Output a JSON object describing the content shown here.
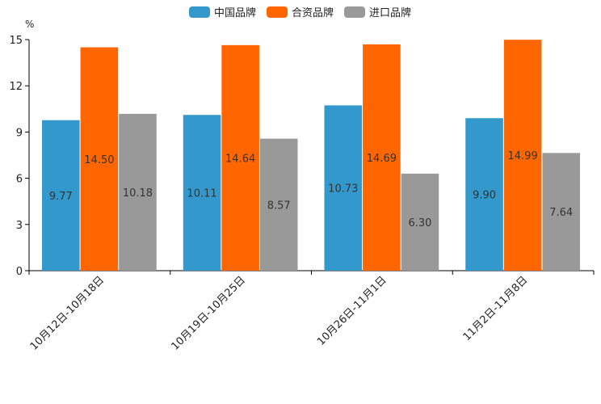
{
  "chart_data": {
    "type": "bar",
    "title": "",
    "xlabel": "",
    "ylabel": "%",
    "ylim": [
      0,
      15
    ],
    "yticks": [
      0,
      3,
      6,
      9,
      12,
      15
    ],
    "grid": false,
    "legend_position": "top-center",
    "categories": [
      "10月12日-10月18日",
      "10月19日-10月25日",
      "10月26日-11月1日",
      "11月2日-11月8日"
    ],
    "series": [
      {
        "name": "中国品牌",
        "color": "#3399cc",
        "values": [
          9.77,
          10.11,
          10.73,
          9.9
        ],
        "labels": [
          "9.77",
          "10.11",
          "10.73",
          "9.90"
        ]
      },
      {
        "name": "合资品牌",
        "color": "#ff6600",
        "values": [
          14.5,
          14.64,
          14.69,
          14.99
        ],
        "labels": [
          "14.50",
          "14.64",
          "14.69",
          "14.99"
        ]
      },
      {
        "name": "进口品牌",
        "color": "#999999",
        "values": [
          10.18,
          8.57,
          6.3,
          7.64
        ],
        "labels": [
          "10.18",
          "8.57",
          "6.30",
          "7.64"
        ]
      }
    ]
  }
}
